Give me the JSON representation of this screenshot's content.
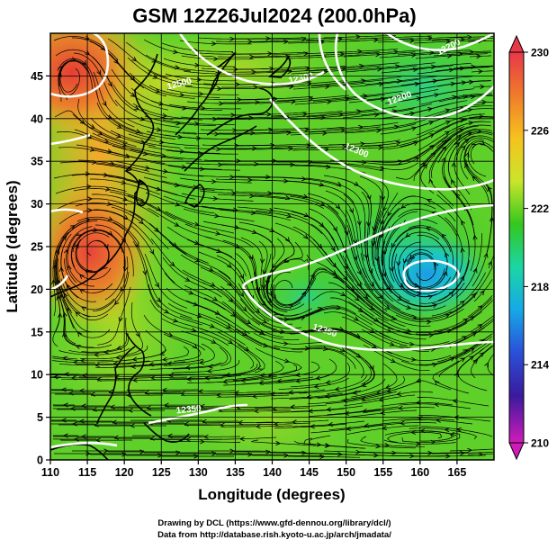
{
  "title": "GSM 12Z26Jul2024 (200.0hPa)",
  "xlabel": "Longitude (degrees)",
  "ylabel": "Latitude  (degrees)",
  "credits": {
    "line1": "Drawing by DCL (https://www.gfd-dennou.org/library/dcl/)",
    "line2": "Data from http://database.rish.kyoto-u.ac.jp/arch/jmadata/"
  },
  "x_ticks": [
    "110",
    "115",
    "120",
    "125",
    "130",
    "135",
    "140",
    "145",
    "150",
    "155",
    "160",
    "165"
  ],
  "y_ticks": [
    "0",
    "5",
    "10",
    "15",
    "20",
    "25",
    "30",
    "35",
    "40",
    "45"
  ],
  "colorbar": {
    "labels": [
      "230",
      "226",
      "222",
      "218",
      "214",
      "210"
    ],
    "stops": [
      "#e8384a",
      "#f07b2a",
      "#f6c21f",
      "#c9e52a",
      "#34c71e",
      "#1ad6a4",
      "#16a8e8",
      "#2a4fd8",
      "#3a1a9e",
      "#d11bb8"
    ]
  },
  "contour_labels": [
    "12200",
    "12200",
    "12300",
    "12300",
    "12350",
    "12350",
    "12500"
  ],
  "chart_data": {
    "type": "heatmap",
    "variable": "200.0hPa",
    "xlim": [
      110,
      170
    ],
    "ylim": [
      0,
      50
    ],
    "colorbar_range": [
      210,
      230
    ],
    "grid": true,
    "features": [
      {
        "value": 229,
        "lon": 112,
        "lat": 47
      },
      {
        "value": 229,
        "lon": 114,
        "lat": 28
      },
      {
        "value": 226,
        "lon": 118,
        "lat": 40
      },
      {
        "value": 224,
        "lon": 125,
        "lat": 30
      },
      {
        "value": 223,
        "lon": 140,
        "lat": 40
      },
      {
        "value": 223,
        "lon": 135,
        "lat": 12
      },
      {
        "value": 220,
        "lon": 150,
        "lat": 25
      },
      {
        "value": 217,
        "lon": 160,
        "lat": 24
      },
      {
        "value": 219,
        "lon": 165,
        "lat": 30
      },
      {
        "value": 222,
        "lon": 160,
        "lat": 40
      },
      {
        "value": 223,
        "lon": 155,
        "lat": 10
      }
    ]
  }
}
